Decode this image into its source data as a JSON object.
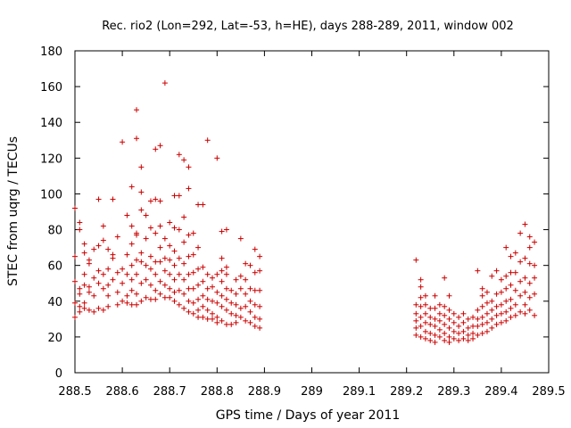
{
  "chart_data": {
    "type": "scatter",
    "title": "Rec. rio2 (Lon=292, Lat=-53, h=HE), days 288-289, 2011, window 002",
    "xlabel": "GPS time / Days of year 2011",
    "ylabel": "STEC from uqrg / TECUs",
    "xlim": [
      288.5,
      289.5
    ],
    "ylim": [
      0,
      180
    ],
    "grid": false,
    "legend": "none",
    "marker": "plus",
    "color": "#cc0000",
    "x_ticks": [
      "288.5",
      "288.6",
      "288.7",
      "288.8",
      "288.9",
      "289",
      "289.1",
      "289.2",
      "289.3",
      "289.4",
      "289.5"
    ],
    "x_tick_values": [
      288.5,
      288.6,
      288.7,
      288.8,
      288.9,
      289.0,
      289.1,
      289.2,
      289.3,
      289.4,
      289.5
    ],
    "y_ticks": [
      "0",
      "20",
      "40",
      "60",
      "80",
      "100",
      "120",
      "140",
      "160",
      "180"
    ],
    "y_tick_values": [
      0,
      20,
      40,
      60,
      80,
      100,
      120,
      140,
      160,
      180
    ],
    "points": [
      [
        288.5,
        92
      ],
      [
        288.5,
        65
      ],
      [
        288.5,
        51
      ],
      [
        288.5,
        39
      ],
      [
        288.5,
        31
      ],
      [
        288.51,
        84
      ],
      [
        288.51,
        80
      ],
      [
        288.51,
        47
      ],
      [
        288.51,
        44
      ],
      [
        288.51,
        37
      ],
      [
        288.51,
        34
      ],
      [
        288.52,
        72
      ],
      [
        288.52,
        67
      ],
      [
        288.52,
        55
      ],
      [
        288.52,
        49
      ],
      [
        288.52,
        39
      ],
      [
        288.52,
        36
      ],
      [
        288.53,
        63
      ],
      [
        288.53,
        61
      ],
      [
        288.53,
        48
      ],
      [
        288.53,
        45
      ],
      [
        288.53,
        35
      ],
      [
        288.54,
        69
      ],
      [
        288.54,
        53
      ],
      [
        288.54,
        43
      ],
      [
        288.54,
        34
      ],
      [
        288.55,
        97
      ],
      [
        288.55,
        71
      ],
      [
        288.55,
        57
      ],
      [
        288.55,
        50
      ],
      [
        288.55,
        36
      ],
      [
        288.56,
        82
      ],
      [
        288.56,
        74
      ],
      [
        288.56,
        55
      ],
      [
        288.56,
        47
      ],
      [
        288.56,
        35
      ],
      [
        288.57,
        69
      ],
      [
        288.57,
        58
      ],
      [
        288.57,
        49
      ],
      [
        288.57,
        43
      ],
      [
        288.57,
        37
      ],
      [
        288.58,
        97
      ],
      [
        288.58,
        66
      ],
      [
        288.58,
        64
      ],
      [
        288.58,
        52
      ],
      [
        288.59,
        76
      ],
      [
        288.59,
        56
      ],
      [
        288.59,
        45
      ],
      [
        288.59,
        38
      ],
      [
        288.6,
        129
      ],
      [
        288.6,
        58
      ],
      [
        288.6,
        50
      ],
      [
        288.6,
        40
      ],
      [
        288.61,
        88
      ],
      [
        288.61,
        66
      ],
      [
        288.61,
        55
      ],
      [
        288.61,
        43
      ],
      [
        288.61,
        39
      ],
      [
        288.62,
        104
      ],
      [
        288.62,
        82
      ],
      [
        288.62,
        72
      ],
      [
        288.62,
        60
      ],
      [
        288.62,
        52
      ],
      [
        288.62,
        46
      ],
      [
        288.62,
        38
      ],
      [
        288.63,
        147
      ],
      [
        288.63,
        131
      ],
      [
        288.63,
        78
      ],
      [
        288.63,
        77
      ],
      [
        288.63,
        63
      ],
      [
        288.63,
        55
      ],
      [
        288.63,
        44
      ],
      [
        288.63,
        38
      ],
      [
        288.64,
        115
      ],
      [
        288.64,
        101
      ],
      [
        288.64,
        91
      ],
      [
        288.64,
        67
      ],
      [
        288.64,
        62
      ],
      [
        288.64,
        50
      ],
      [
        288.64,
        40
      ],
      [
        288.65,
        88
      ],
      [
        288.65,
        75
      ],
      [
        288.65,
        60
      ],
      [
        288.65,
        52
      ],
      [
        288.65,
        42
      ],
      [
        288.66,
        96
      ],
      [
        288.66,
        81
      ],
      [
        288.66,
        65
      ],
      [
        288.66,
        58
      ],
      [
        288.66,
        49
      ],
      [
        288.66,
        41
      ],
      [
        288.67,
        125
      ],
      [
        288.67,
        97
      ],
      [
        288.67,
        78
      ],
      [
        288.67,
        62
      ],
      [
        288.67,
        55
      ],
      [
        288.67,
        46
      ],
      [
        288.67,
        41
      ],
      [
        288.68,
        127
      ],
      [
        288.68,
        96
      ],
      [
        288.68,
        82
      ],
      [
        288.68,
        70
      ],
      [
        288.68,
        62
      ],
      [
        288.68,
        51
      ],
      [
        288.68,
        44
      ],
      [
        288.69,
        162
      ],
      [
        288.69,
        75
      ],
      [
        288.69,
        64
      ],
      [
        288.69,
        57
      ],
      [
        288.69,
        49
      ],
      [
        288.69,
        42
      ],
      [
        288.7,
        84
      ],
      [
        288.7,
        71
      ],
      [
        288.7,
        63
      ],
      [
        288.7,
        55
      ],
      [
        288.7,
        47
      ],
      [
        288.7,
        42
      ],
      [
        288.71,
        99
      ],
      [
        288.71,
        81
      ],
      [
        288.71,
        68
      ],
      [
        288.71,
        60
      ],
      [
        288.71,
        52
      ],
      [
        288.71,
        45
      ],
      [
        288.71,
        40
      ],
      [
        288.72,
        122
      ],
      [
        288.72,
        99
      ],
      [
        288.72,
        80
      ],
      [
        288.72,
        64
      ],
      [
        288.72,
        55
      ],
      [
        288.72,
        46
      ],
      [
        288.72,
        38
      ],
      [
        288.73,
        119
      ],
      [
        288.73,
        87
      ],
      [
        288.73,
        73
      ],
      [
        288.73,
        61
      ],
      [
        288.73,
        52
      ],
      [
        288.73,
        44
      ],
      [
        288.73,
        36
      ],
      [
        288.74,
        115
      ],
      [
        288.74,
        103
      ],
      [
        288.74,
        77
      ],
      [
        288.74,
        65
      ],
      [
        288.74,
        55
      ],
      [
        288.74,
        47
      ],
      [
        288.74,
        40
      ],
      [
        288.74,
        34
      ],
      [
        288.75,
        78
      ],
      [
        288.75,
        66
      ],
      [
        288.75,
        56
      ],
      [
        288.75,
        47
      ],
      [
        288.75,
        39
      ],
      [
        288.75,
        33
      ],
      [
        288.76,
        94
      ],
      [
        288.76,
        70
      ],
      [
        288.76,
        58
      ],
      [
        288.76,
        49
      ],
      [
        288.76,
        41
      ],
      [
        288.76,
        35
      ],
      [
        288.76,
        31
      ],
      [
        288.77,
        94
      ],
      [
        288.77,
        59
      ],
      [
        288.77,
        51
      ],
      [
        288.77,
        43
      ],
      [
        288.77,
        37
      ],
      [
        288.77,
        31
      ],
      [
        288.78,
        130
      ],
      [
        288.78,
        55
      ],
      [
        288.78,
        47
      ],
      [
        288.78,
        41
      ],
      [
        288.78,
        35
      ],
      [
        288.78,
        30
      ],
      [
        288.79,
        53
      ],
      [
        288.79,
        48
      ],
      [
        288.79,
        40
      ],
      [
        288.79,
        33
      ],
      [
        288.79,
        30
      ],
      [
        288.8,
        120
      ],
      [
        288.8,
        55
      ],
      [
        288.8,
        45
      ],
      [
        288.8,
        39
      ],
      [
        288.8,
        31
      ],
      [
        288.8,
        28
      ],
      [
        288.81,
        79
      ],
      [
        288.81,
        64
      ],
      [
        288.81,
        57
      ],
      [
        288.81,
        51
      ],
      [
        288.81,
        43
      ],
      [
        288.81,
        37
      ],
      [
        288.81,
        29
      ],
      [
        288.82,
        80
      ],
      [
        288.82,
        59
      ],
      [
        288.82,
        55
      ],
      [
        288.82,
        47
      ],
      [
        288.82,
        41
      ],
      [
        288.82,
        35
      ],
      [
        288.82,
        27
      ],
      [
        288.83,
        46
      ],
      [
        288.83,
        39
      ],
      [
        288.83,
        33
      ],
      [
        288.83,
        27
      ],
      [
        288.84,
        52
      ],
      [
        288.84,
        44
      ],
      [
        288.84,
        38
      ],
      [
        288.84,
        32
      ],
      [
        288.84,
        28
      ],
      [
        288.85,
        75
      ],
      [
        288.85,
        54
      ],
      [
        288.85,
        47
      ],
      [
        288.85,
        36
      ],
      [
        288.85,
        31
      ],
      [
        288.86,
        61
      ],
      [
        288.86,
        52
      ],
      [
        288.86,
        44
      ],
      [
        288.86,
        37
      ],
      [
        288.86,
        29
      ],
      [
        288.87,
        60
      ],
      [
        288.87,
        47
      ],
      [
        288.87,
        40
      ],
      [
        288.87,
        34
      ],
      [
        288.87,
        28
      ],
      [
        288.88,
        69
      ],
      [
        288.88,
        56
      ],
      [
        288.88,
        46
      ],
      [
        288.88,
        38
      ],
      [
        288.88,
        31
      ],
      [
        288.88,
        26
      ],
      [
        288.89,
        65
      ],
      [
        288.89,
        57
      ],
      [
        288.89,
        46
      ],
      [
        288.89,
        37
      ],
      [
        288.89,
        30
      ],
      [
        288.89,
        25
      ],
      [
        289.22,
        63
      ],
      [
        289.22,
        38
      ],
      [
        289.22,
        33
      ],
      [
        289.22,
        29
      ],
      [
        289.22,
        25
      ],
      [
        289.22,
        21
      ],
      [
        289.23,
        52
      ],
      [
        289.23,
        48
      ],
      [
        289.23,
        42
      ],
      [
        289.23,
        37
      ],
      [
        289.23,
        31
      ],
      [
        289.23,
        26
      ],
      [
        289.23,
        20
      ],
      [
        289.24,
        43
      ],
      [
        289.24,
        38
      ],
      [
        289.24,
        33
      ],
      [
        289.24,
        28
      ],
      [
        289.24,
        23
      ],
      [
        289.24,
        19
      ],
      [
        289.25,
        36
      ],
      [
        289.25,
        31
      ],
      [
        289.25,
        27
      ],
      [
        289.25,
        22
      ],
      [
        289.25,
        18
      ],
      [
        289.26,
        43
      ],
      [
        289.26,
        36
      ],
      [
        289.26,
        30
      ],
      [
        289.26,
        26
      ],
      [
        289.26,
        21
      ],
      [
        289.26,
        17
      ],
      [
        289.27,
        38
      ],
      [
        289.27,
        33
      ],
      [
        289.27,
        29
      ],
      [
        289.27,
        24
      ],
      [
        289.27,
        20
      ],
      [
        289.28,
        53
      ],
      [
        289.28,
        37
      ],
      [
        289.28,
        32
      ],
      [
        289.28,
        27
      ],
      [
        289.28,
        22
      ],
      [
        289.28,
        18
      ],
      [
        289.29,
        43
      ],
      [
        289.29,
        35
      ],
      [
        289.29,
        30
      ],
      [
        289.29,
        25
      ],
      [
        289.29,
        20
      ],
      [
        289.29,
        17
      ],
      [
        289.3,
        33
      ],
      [
        289.3,
        28
      ],
      [
        289.3,
        23
      ],
      [
        289.3,
        19
      ],
      [
        289.31,
        31
      ],
      [
        289.31,
        26
      ],
      [
        289.31,
        22
      ],
      [
        289.31,
        18
      ],
      [
        289.32,
        33
      ],
      [
        289.32,
        28
      ],
      [
        289.32,
        23
      ],
      [
        289.32,
        19
      ],
      [
        289.33,
        30
      ],
      [
        289.33,
        25
      ],
      [
        289.33,
        21
      ],
      [
        289.33,
        18
      ],
      [
        289.34,
        31
      ],
      [
        289.34,
        26
      ],
      [
        289.34,
        22
      ],
      [
        289.34,
        19
      ],
      [
        289.35,
        57
      ],
      [
        289.35,
        35
      ],
      [
        289.35,
        30
      ],
      [
        289.35,
        26
      ],
      [
        289.35,
        21
      ],
      [
        289.36,
        47
      ],
      [
        289.36,
        43
      ],
      [
        289.36,
        37
      ],
      [
        289.36,
        31
      ],
      [
        289.36,
        27
      ],
      [
        289.36,
        22
      ],
      [
        289.37,
        45
      ],
      [
        289.37,
        39
      ],
      [
        289.37,
        33
      ],
      [
        289.37,
        28
      ],
      [
        289.37,
        23
      ],
      [
        289.38,
        54
      ],
      [
        289.38,
        40
      ],
      [
        289.38,
        35
      ],
      [
        289.38,
        30
      ],
      [
        289.38,
        25
      ],
      [
        289.39,
        57
      ],
      [
        289.39,
        44
      ],
      [
        289.39,
        37
      ],
      [
        289.39,
        32
      ],
      [
        289.39,
        27
      ],
      [
        289.4,
        52
      ],
      [
        289.4,
        45
      ],
      [
        289.4,
        38
      ],
      [
        289.4,
        33
      ],
      [
        289.4,
        28
      ],
      [
        289.41,
        70
      ],
      [
        289.41,
        54
      ],
      [
        289.41,
        47
      ],
      [
        289.41,
        40
      ],
      [
        289.41,
        34
      ],
      [
        289.41,
        29
      ],
      [
        289.42,
        65
      ],
      [
        289.42,
        56
      ],
      [
        289.42,
        49
      ],
      [
        289.42,
        41
      ],
      [
        289.42,
        36
      ],
      [
        289.42,
        31
      ],
      [
        289.43,
        67
      ],
      [
        289.43,
        56
      ],
      [
        289.43,
        46
      ],
      [
        289.43,
        38
      ],
      [
        289.43,
        32
      ],
      [
        289.44,
        78
      ],
      [
        289.44,
        62
      ],
      [
        289.44,
        51
      ],
      [
        289.44,
        43
      ],
      [
        289.44,
        34
      ],
      [
        289.45,
        83
      ],
      [
        289.45,
        64
      ],
      [
        289.45,
        53
      ],
      [
        289.45,
        45
      ],
      [
        289.45,
        38
      ],
      [
        289.45,
        33
      ],
      [
        289.46,
        76
      ],
      [
        289.46,
        70
      ],
      [
        289.46,
        61
      ],
      [
        289.46,
        50
      ],
      [
        289.46,
        42
      ],
      [
        289.46,
        35
      ],
      [
        289.47,
        73
      ],
      [
        289.47,
        60
      ],
      [
        289.47,
        53
      ],
      [
        289.47,
        44
      ],
      [
        289.47,
        32
      ]
    ]
  }
}
